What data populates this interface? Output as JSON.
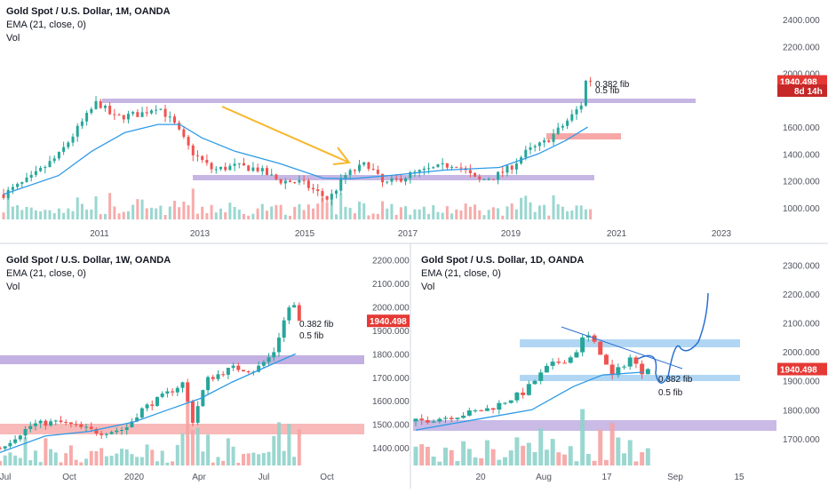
{
  "colors": {
    "up": "#26a69a",
    "down": "#ef5350",
    "vol_up": "#8fd3cb",
    "vol_down": "#f5a3a2",
    "ema": "#2e9ae6",
    "zone_purple": "#b39ddb",
    "zone_red": "#f48a8a",
    "zone_blue": "#90c4f0",
    "arrow": "#f5b82e",
    "path": "#2a6fcf",
    "price_tag": "#e53935",
    "axis_text": "#50535e",
    "separator": "#d1d4dc"
  },
  "panels": {
    "monthly": {
      "legend": {
        "title": "Gold Spot / U.S. Dollar, 1M, OANDA",
        "ema": "EMA (21, close, 0)",
        "vol": "Vol"
      },
      "y_ticks": [
        "2400.000",
        "2200.000",
        "2000.000",
        "1600.000",
        "1400.000",
        "1200.000",
        "1000.000"
      ],
      "x_ticks": [
        "2011",
        "2013",
        "2015",
        "2017",
        "2019",
        "2021",
        "2023"
      ],
      "price_label": "1940.498",
      "countdown_label": "8d 14h",
      "fib_382": "0.382 fib",
      "fib_5": "0.5 fib"
    },
    "weekly": {
      "legend": {
        "title": "Gold Spot / U.S. Dollar, 1W, OANDA",
        "ema": "EMA (21, close, 0)",
        "vol": "Vol"
      },
      "y_ticks": [
        "2200.000",
        "2100.000",
        "2000.000",
        "1900.000",
        "1800.000",
        "1700.000",
        "1600.000",
        "1500.000",
        "1400.000"
      ],
      "x_ticks": [
        "Jul",
        "Oct",
        "2020",
        "Apr",
        "Jul",
        "Oct"
      ],
      "price_label": "1940.498",
      "fib_382": "0.382 fib",
      "fib_5": "0.5 fib"
    },
    "daily": {
      "legend": {
        "title": "Gold Spot / U.S. Dollar, 1D, OANDA",
        "ema": "EMA (21, close, 0)",
        "vol": "Vol"
      },
      "y_ticks": [
        "2300.000",
        "2200.000",
        "2100.000",
        "2000.000",
        "1900.000",
        "1800.000",
        "1700.000"
      ],
      "x_ticks": [
        "20",
        "Aug",
        "17",
        "Sep",
        "15"
      ],
      "price_label": "1940.498",
      "fib_382": "0.382 fib",
      "fib_5": "0.5 fib"
    }
  },
  "chart_data": [
    {
      "type": "candlestick",
      "title": "Gold Spot / U.S. Dollar, 1M, OANDA",
      "x_range": [
        2010.0,
        2023.8
      ],
      "ylim": [
        880,
        2480
      ],
      "series": [
        {
          "name": "EMA (21, close, 0)",
          "points": [
            [
              2010.0,
              1100
            ],
            [
              2011.0,
              1240
            ],
            [
              2011.6,
              1420
            ],
            [
              2012.2,
              1560
            ],
            [
              2012.8,
              1620
            ],
            [
              2013.2,
              1620
            ],
            [
              2013.6,
              1520
            ],
            [
              2014.2,
              1420
            ],
            [
              2015.0,
              1330
            ],
            [
              2015.8,
              1220
            ],
            [
              2016.3,
              1215
            ],
            [
              2017.0,
              1240
            ],
            [
              2018.0,
              1280
            ],
            [
              2019.0,
              1300
            ],
            [
              2019.7,
              1400
            ],
            [
              2020.2,
              1500
            ],
            [
              2020.6,
              1600
            ]
          ]
        }
      ],
      "close_points": [
        [
          2010.0,
          1100
        ],
        [
          2010.5,
          1220
        ],
        [
          2011.0,
          1390
        ],
        [
          2011.4,
          1620
        ],
        [
          2011.7,
          1790
        ],
        [
          2012.0,
          1670
        ],
        [
          2012.5,
          1700
        ],
        [
          2012.8,
          1760
        ],
        [
          2013.1,
          1620
        ],
        [
          2013.4,
          1420
        ],
        [
          2013.8,
          1280
        ],
        [
          2014.2,
          1310
        ],
        [
          2014.6,
          1290
        ],
        [
          2015.0,
          1200
        ],
        [
          2015.4,
          1190
        ],
        [
          2015.9,
          1060
        ],
        [
          2016.2,
          1240
        ],
        [
          2016.6,
          1330
        ],
        [
          2016.9,
          1170
        ],
        [
          2017.4,
          1250
        ],
        [
          2017.9,
          1300
        ],
        [
          2018.2,
          1330
        ],
        [
          2018.6,
          1200
        ],
        [
          2018.9,
          1230
        ],
        [
          2019.2,
          1300
        ],
        [
          2019.5,
          1420
        ],
        [
          2019.8,
          1480
        ],
        [
          2020.1,
          1590
        ],
        [
          2020.35,
          1700
        ],
        [
          2020.5,
          1780
        ],
        [
          2020.58,
          1975
        ],
        [
          2020.65,
          1940
        ]
      ],
      "annotations": [
        "0.382 fib",
        "0.5 fib"
      ],
      "last_price": 1940.498
    },
    {
      "type": "candlestick",
      "title": "Gold Spot / U.S. Dollar, 1W, OANDA",
      "x_range": [
        "2019-07-01",
        "2020-11-05"
      ],
      "ylim": [
        1340,
        2240
      ],
      "series": [
        {
          "name": "EMA (21, close, 0)",
          "points": [
            [
              "2019-07-01",
              1380
            ],
            [
              "2019-09-01",
              1450
            ],
            [
              "2019-11-01",
              1470
            ],
            [
              "2020-01-01",
              1510
            ],
            [
              "2020-02-15",
              1560
            ],
            [
              "2020-04-01",
              1610
            ],
            [
              "2020-05-15",
              1680
            ],
            [
              "2020-06-20",
              1730
            ],
            [
              "2020-08-10",
              1800
            ]
          ]
        }
      ],
      "close_points": [
        [
          "2019-07-01",
          1400
        ],
        [
          "2019-08-15",
          1500
        ],
        [
          "2019-09-20",
          1510
        ],
        [
          "2019-11-15",
          1465
        ],
        [
          "2019-12-20",
          1480
        ],
        [
          "2020-01-10",
          1560
        ],
        [
          "2020-02-20",
          1640
        ],
        [
          "2020-03-10",
          1680
        ],
        [
          "2020-03-20",
          1500
        ],
        [
          "2020-04-10",
          1690
        ],
        [
          "2020-05-15",
          1740
        ],
        [
          "2020-06-15",
          1730
        ],
        [
          "2020-07-10",
          1800
        ],
        [
          "2020-07-25",
          1940
        ],
        [
          "2020-08-05",
          2030
        ],
        [
          "2020-08-15",
          1940
        ]
      ],
      "annotations": [
        "0.382 fib",
        "0.5 fib"
      ],
      "last_price": 1940.498
    },
    {
      "type": "candlestick",
      "title": "Gold Spot / U.S. Dollar, 1D, OANDA",
      "x_range": [
        "2020-06-26",
        "2020-09-18"
      ],
      "ylim": [
        1620,
        2350
      ],
      "series": [
        {
          "name": "EMA (21, close, 0)",
          "points": [
            [
              "2020-06-26",
              1730
            ],
            [
              "2020-07-10",
              1765
            ],
            [
              "2020-07-24",
              1800
            ],
            [
              "2020-08-03",
              1880
            ],
            [
              "2020-08-10",
              1920
            ],
            [
              "2020-08-20",
              1930
            ]
          ]
        }
      ],
      "close_points": [
        [
          "2020-06-26",
          1760
        ],
        [
          "2020-07-06",
          1780
        ],
        [
          "2020-07-14",
          1805
        ],
        [
          "2020-07-22",
          1860
        ],
        [
          "2020-07-28",
          1950
        ],
        [
          "2020-08-03",
          1985
        ],
        [
          "2020-08-06",
          2065
        ],
        [
          "2020-08-10",
          1990
        ],
        [
          "2020-08-12",
          1910
        ],
        [
          "2020-08-17",
          1985
        ],
        [
          "2020-08-19",
          1930
        ],
        [
          "2020-08-21",
          1940
        ]
      ],
      "annotations": [
        "0.382 fib",
        "0.5 fib"
      ],
      "last_price": 1940.498
    }
  ]
}
